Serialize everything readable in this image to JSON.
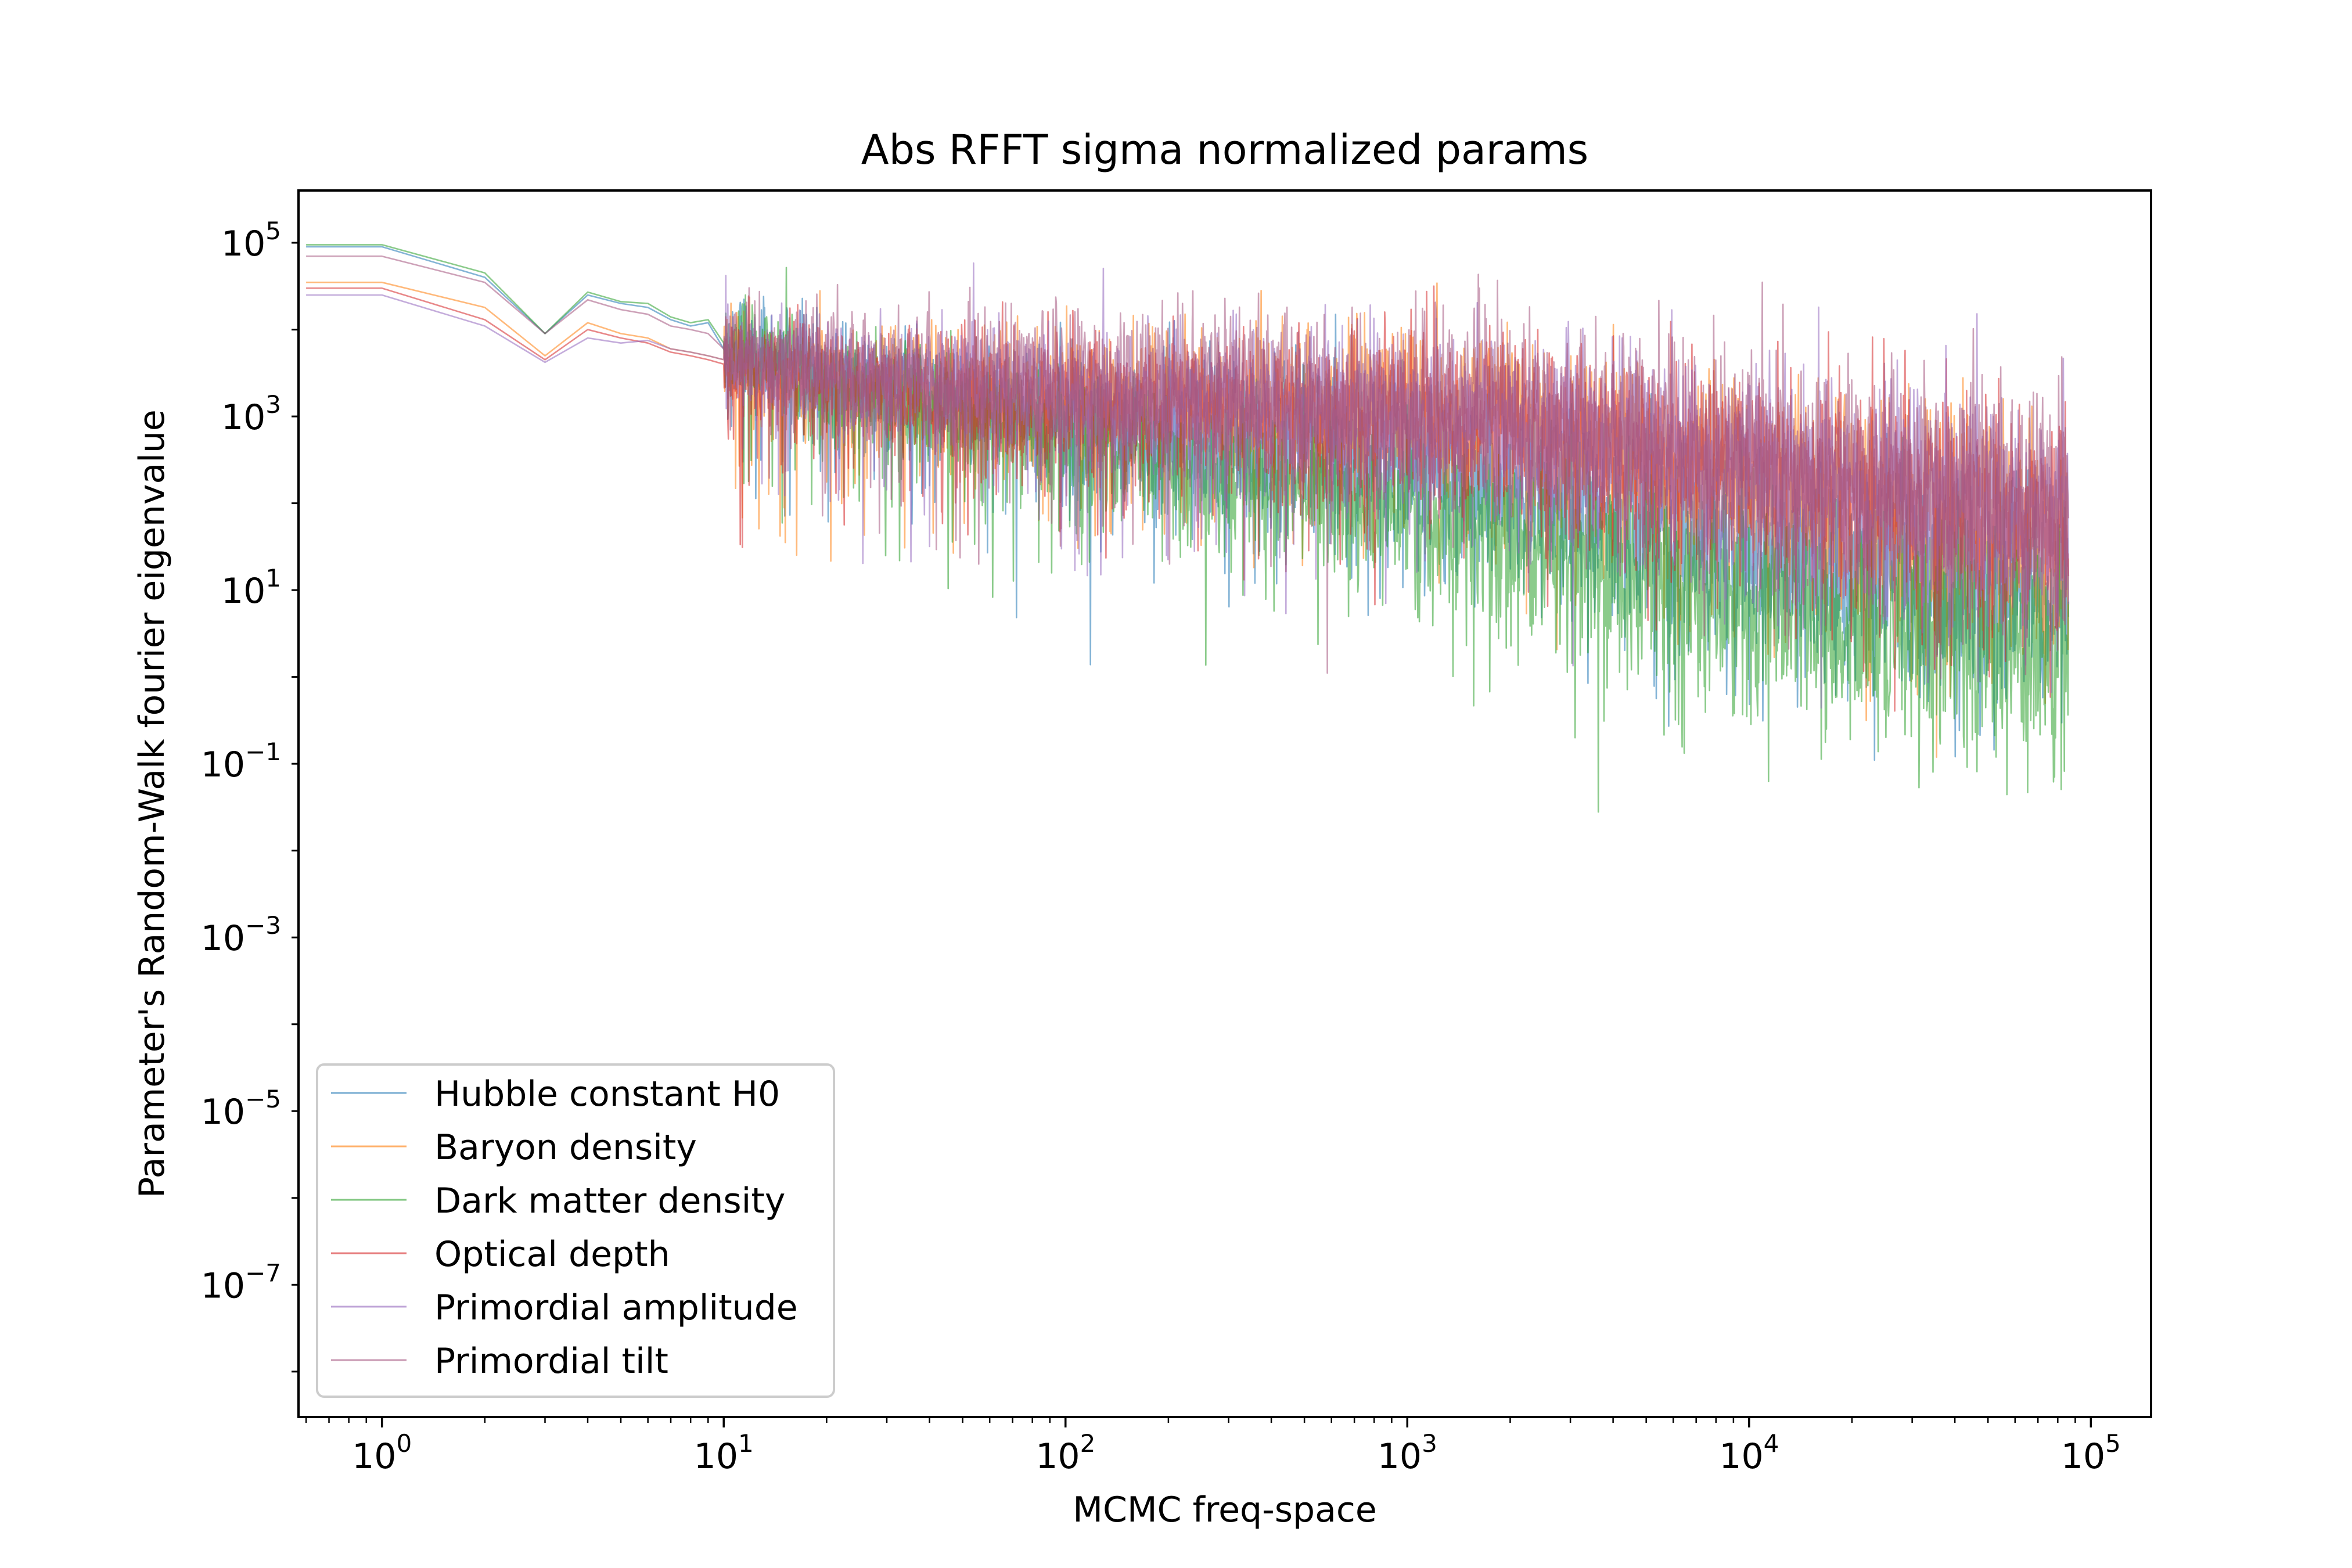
{
  "chart_data": {
    "type": "line",
    "title": "Abs RFFT sigma normalized params",
    "xlabel": "MCMC freq-space",
    "ylabel": "Parameter's Random-Walk fourier eigenvalue",
    "xscale": "log",
    "yscale": "log",
    "xlim": [
      0.57,
      150000
    ],
    "ylim": [
      3e-09,
      400000.0
    ],
    "x_ticks": [
      {
        "value": 1,
        "base": "10",
        "exp": "0"
      },
      {
        "value": 10,
        "base": "10",
        "exp": "1"
      },
      {
        "value": 100,
        "base": "10",
        "exp": "2"
      },
      {
        "value": 1000,
        "base": "10",
        "exp": "3"
      },
      {
        "value": 10000,
        "base": "10",
        "exp": "4"
      },
      {
        "value": 100000,
        "base": "10",
        "exp": "5"
      }
    ],
    "y_ticks": [
      {
        "value": 100000,
        "base": "10",
        "exp": "5"
      },
      {
        "value": 1000,
        "base": "10",
        "exp": "3"
      },
      {
        "value": 10,
        "base": "10",
        "exp": "1"
      },
      {
        "value": 0.1,
        "base": "10",
        "exp": "−1"
      },
      {
        "value": 0.001,
        "base": "10",
        "exp": "−3"
      },
      {
        "value": 1e-05,
        "base": "10",
        "exp": "−5"
      },
      {
        "value": 1e-07,
        "base": "10",
        "exp": "−7"
      }
    ],
    "grid": false,
    "legend_position": "lower-left",
    "series": [
      {
        "name": "Hubble constant H0",
        "color": "#1f77b4",
        "x": [
          0.6,
          1,
          2,
          3,
          4,
          5,
          6,
          7,
          8,
          9,
          10,
          15,
          20,
          30,
          50,
          100,
          200,
          500,
          1000,
          2000,
          5000,
          10000,
          20000,
          50000,
          86000
        ],
        "y": [
          90000,
          90000,
          40000,
          9000,
          25000,
          20000,
          18000,
          13000,
          11000,
          12000,
          6000,
          5000,
          2500,
          2000,
          1500,
          800,
          600,
          400,
          300,
          150,
          60,
          35,
          20,
          12,
          8
        ]
      },
      {
        "name": "Baryon density",
        "color": "#ff7f0e",
        "x": [
          0.6,
          1,
          2,
          3,
          4,
          5,
          6,
          7,
          8,
          9,
          10,
          15,
          20,
          30,
          50,
          100,
          200,
          500,
          1000,
          2000,
          5000,
          10000,
          20000,
          50000,
          86000
        ],
        "y": [
          35000,
          35000,
          18000,
          5000,
          12000,
          9000,
          8000,
          6000,
          5500,
          5000,
          4500,
          3000,
          2500,
          2000,
          1600,
          1500,
          1400,
          1300,
          1100,
          900,
          400,
          200,
          120,
          60,
          40
        ]
      },
      {
        "name": "Dark matter density",
        "color": "#2ca02c",
        "x": [
          0.6,
          1,
          2,
          3,
          4,
          5,
          6,
          7,
          8,
          9,
          10,
          15,
          20,
          30,
          50,
          100,
          200,
          500,
          1000,
          2000,
          5000,
          10000,
          20000,
          50000,
          86000
        ],
        "y": [
          95000,
          95000,
          45000,
          9000,
          27000,
          21000,
          20000,
          14000,
          12000,
          13000,
          7000,
          5000,
          2000,
          1500,
          1000,
          500,
          300,
          150,
          80,
          40,
          15,
          8,
          5,
          3,
          2
        ]
      },
      {
        "name": "Optical depth",
        "color": "#d62728",
        "x": [
          0.6,
          1,
          2,
          3,
          4,
          5,
          6,
          7,
          8,
          9,
          10,
          15,
          20,
          30,
          50,
          100,
          200,
          500,
          1000,
          2000,
          5000,
          10000,
          20000,
          50000,
          86000
        ],
        "y": [
          30000,
          30000,
          13000,
          4500,
          10000,
          8000,
          7000,
          5500,
          5000,
          4500,
          4000,
          3000,
          2500,
          2200,
          1800,
          1500,
          1300,
          1100,
          1000,
          800,
          400,
          250,
          150,
          80,
          50
        ]
      },
      {
        "name": "Primordial amplitude",
        "color": "#9467bd",
        "x": [
          0.6,
          1,
          2,
          3,
          4,
          5,
          6,
          7,
          8,
          9,
          10,
          15,
          20,
          30,
          50,
          100,
          200,
          500,
          1000,
          2000,
          5000,
          10000,
          20000,
          50000,
          86000
        ],
        "y": [
          25000,
          25000,
          11000,
          4200,
          8000,
          7000,
          7500,
          6000,
          5500,
          5000,
          4500,
          3500,
          3000,
          2500,
          2000,
          1600,
          1400,
          1200,
          1000,
          800,
          400,
          250,
          160,
          90,
          60
        ]
      },
      {
        "name": "Primordial tilt",
        "color": "#a4537e",
        "x": [
          0.6,
          1,
          2,
          3,
          4,
          5,
          6,
          7,
          8,
          9,
          10,
          15,
          20,
          30,
          50,
          100,
          200,
          500,
          1000,
          2000,
          5000,
          10000,
          20000,
          50000,
          86000
        ],
        "y": [
          70000,
          70000,
          35000,
          9000,
          22000,
          17000,
          15000,
          11000,
          10000,
          9000,
          6000,
          5000,
          4000,
          3500,
          3000,
          2800,
          2500,
          2000,
          1600,
          1200,
          600,
          400,
          250,
          150,
          100
        ]
      }
    ]
  }
}
